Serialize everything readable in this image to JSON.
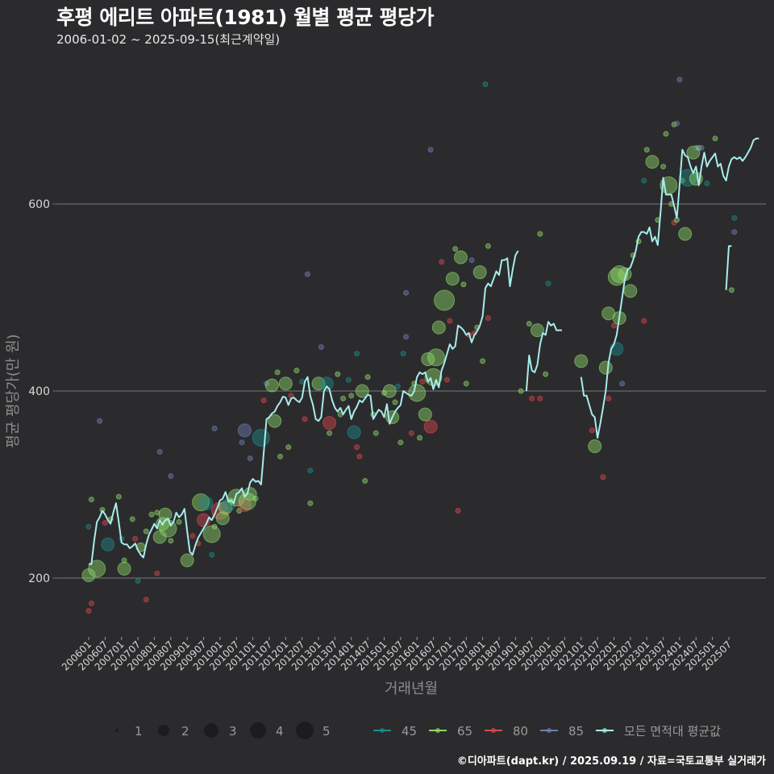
{
  "header": {
    "title": "후평 에리트 아파트(1981) 월별 평균 평당가",
    "subtitle": "2006-01-02 ~ 2025-09-15(최근계약일)"
  },
  "footer": {
    "credit": "©디아파트(dapt.kr) / 2025.09.19 / 자료=국토교통부 실거래가"
  },
  "colors": {
    "background": "#2b2b2d",
    "grid": "#6a6a6a",
    "avg_line": "#a8ecec",
    "s45": "#1f8a8a",
    "s65": "#8fd66b",
    "s80": "#d9484f",
    "s85": "#6f7fb8"
  },
  "chart_data": {
    "type": "line+scatter",
    "title": "후평 에리트 아파트(1981) 월별 평균 평당가",
    "subtitle": "2006-01-02 ~ 2025-09-15(최근계약일)",
    "xlabel": "거래년월",
    "ylabel": "평균 평당가(만 원)",
    "ylim": [
      130,
      745
    ],
    "yticks": [
      200,
      400,
      600
    ],
    "grid": true,
    "x_start": "200601",
    "x_ticks": [
      "200601",
      "200607",
      "200701",
      "200707",
      "200801",
      "200807",
      "200901",
      "200907",
      "201001",
      "201007",
      "201101",
      "201107",
      "201201",
      "201207",
      "201301",
      "201307",
      "201401",
      "201407",
      "201501",
      "201507",
      "201601",
      "201607",
      "201701",
      "201707",
      "201801",
      "201807",
      "201901",
      "201907",
      "202001",
      "202007",
      "202101",
      "202107",
      "202201",
      "202207",
      "202301",
      "202307",
      "202401",
      "202407",
      "202501",
      "202507"
    ],
    "size_legend": {
      "title": "",
      "values": [
        1,
        2,
        3,
        4,
        5
      ]
    },
    "color_legend": [
      {
        "name": "45",
        "key": "s45"
      },
      {
        "name": "65",
        "key": "s65"
      },
      {
        "name": "80",
        "key": "s80"
      },
      {
        "name": "85",
        "key": "s85"
      },
      {
        "name": "모든 면적대 평균값",
        "key": "avg_line"
      }
    ],
    "avg_line_segments": [
      {
        "start_index": 0,
        "values": [
          215,
          215,
          240,
          260,
          265,
          272,
          268,
          262,
          258,
          270,
          280,
          260,
          238,
          236,
          236,
          232,
          234,
          237,
          230,
          225,
          222,
          236,
          246,
          252,
          258,
          253,
          262,
          257,
          262,
          264,
          256,
          260,
          270,
          265,
          268,
          274,
          250,
          228,
          225,
          235,
          243,
          248,
          253,
          258,
          265,
          262,
          268,
          275,
          283,
          285,
          292,
          282,
          283,
          280,
          290,
          292,
          296,
          287,
          290,
          302,
          306,
          303,
          304,
          300,
          335,
          370,
          372,
          376,
          378,
          384,
          388,
          394,
          393,
          385,
          392,
          393,
          390,
          388,
          393,
          410,
          415,
          395,
          385,
          370,
          368,
          372,
          400,
          405,
          402,
          390,
          382,
          378,
          382,
          375,
          380,
          384,
          370,
          378,
          383,
          390,
          388,
          392,
          396,
          395,
          370,
          375,
          380,
          378,
          372,
          386,
          365,
          372,
          378,
          382,
          385,
          400,
          398,
          396,
          395,
          400,
          415,
          420,
          418,
          420,
          410,
          414,
          402,
          412,
          404,
          422,
          430,
          440,
          450,
          445,
          448,
          470,
          468,
          465,
          460,
          462,
          452,
          460,
          464,
          470,
          480,
          510,
          515,
          512,
          520,
          528,
          524,
          540,
          540,
          542,
          512,
          530,
          545,
          550
        ]
      },
      {
        "start_index": 160,
        "values": [
          400,
          438,
          422,
          420,
          428,
          450,
          462,
          460,
          474,
          470,
          472,
          465,
          465,
          465
        ]
      },
      {
        "start_index": 180,
        "values": [
          415,
          395,
          395,
          385,
          375,
          372,
          350,
          365,
          382,
          400,
          430,
          445,
          450,
          460,
          480,
          500,
          520,
          530,
          532,
          540,
          550,
          565,
          570,
          570,
          568,
          575,
          560,
          565,
          556,
          590,
          628,
          610,
          610,
          610,
          598,
          585,
          620,
          658,
          652,
          650,
          640,
          633,
          640,
          620,
          640,
          655,
          640,
          646,
          650,
          654,
          640,
          643,
          630,
          625,
          640,
          648,
          650,
          648,
          650,
          646,
          650,
          655,
          660,
          668,
          670,
          670
        ]
      },
      {
        "start_index": 233,
        "values": [
          508,
          555,
          555
        ]
      }
    ],
    "scatter_points": [
      [
        0,
        203,
        3,
        "s65"
      ],
      [
        0,
        255,
        1,
        "s45"
      ],
      [
        1,
        284,
        1,
        "s65"
      ],
      [
        0,
        165,
        1,
        "s80"
      ],
      [
        1,
        173,
        1,
        "s80"
      ],
      [
        3,
        210,
        4,
        "s65"
      ],
      [
        4,
        368,
        1,
        "s85"
      ],
      [
        5,
        273,
        1,
        "s65"
      ],
      [
        6,
        259,
        1,
        "s80"
      ],
      [
        8,
        263,
        1,
        "s65"
      ],
      [
        7,
        236,
        3,
        "s45"
      ],
      [
        11,
        287,
        1,
        "s65"
      ],
      [
        12,
        242,
        1,
        "s45"
      ],
      [
        13,
        219,
        1,
        "s65"
      ],
      [
        13,
        210,
        3,
        "s65"
      ],
      [
        16,
        263,
        1,
        "s65"
      ],
      [
        17,
        242,
        1,
        "s80"
      ],
      [
        18,
        197,
        1,
        "s45"
      ],
      [
        19,
        233,
        2,
        "s65"
      ],
      [
        21,
        177,
        1,
        "s80"
      ],
      [
        21,
        250,
        1,
        "s65"
      ],
      [
        23,
        268,
        1,
        "s65"
      ],
      [
        25,
        205,
        1,
        "s80"
      ],
      [
        25,
        270,
        1,
        "s65"
      ],
      [
        26,
        244,
        3,
        "s65"
      ],
      [
        27,
        258,
        3,
        "s65"
      ],
      [
        28,
        268,
        3,
        "s65"
      ],
      [
        29,
        253,
        4,
        "s65"
      ],
      [
        30,
        240,
        1,
        "s65"
      ],
      [
        26,
        335,
        1,
        "s85"
      ],
      [
        30,
        309,
        1,
        "s85"
      ],
      [
        33,
        260,
        1,
        "s65"
      ],
      [
        36,
        219,
        3,
        "s65"
      ],
      [
        38,
        245,
        1,
        "s80"
      ],
      [
        40,
        237,
        1,
        "s80"
      ],
      [
        41,
        281,
        4,
        "s65"
      ],
      [
        42,
        262,
        3,
        "s80"
      ],
      [
        43,
        280,
        3,
        "s45"
      ],
      [
        45,
        247,
        4,
        "s65"
      ],
      [
        46,
        255,
        1,
        "s65"
      ],
      [
        45,
        225,
        1,
        "s45"
      ],
      [
        46,
        360,
        1,
        "s85"
      ],
      [
        48,
        272,
        4,
        "s80"
      ],
      [
        49,
        264,
        3,
        "s65"
      ],
      [
        50,
        275,
        3,
        "s65"
      ],
      [
        51,
        278,
        3,
        "s45"
      ],
      [
        52,
        283,
        1,
        "s65"
      ],
      [
        54,
        286,
        4,
        "s65"
      ],
      [
        55,
        272,
        1,
        "s65"
      ],
      [
        57,
        358,
        3,
        "s85"
      ],
      [
        57,
        278,
        3,
        "s80"
      ],
      [
        58,
        282,
        4,
        "s65"
      ],
      [
        59,
        290,
        3,
        "s65"
      ],
      [
        59,
        328,
        1,
        "s85"
      ],
      [
        56,
        345,
        1,
        "s85"
      ],
      [
        61,
        285,
        1,
        "s65"
      ],
      [
        63,
        350,
        4,
        "s45"
      ],
      [
        64,
        390,
        1,
        "s80"
      ],
      [
        65,
        408,
        1,
        "s85"
      ],
      [
        67,
        406,
        3,
        "s65"
      ],
      [
        68,
        368,
        3,
        "s65"
      ],
      [
        69,
        420,
        1,
        "s65"
      ],
      [
        70,
        330,
        1,
        "s65"
      ],
      [
        72,
        408,
        3,
        "s65"
      ],
      [
        73,
        340,
        1,
        "s65"
      ],
      [
        74,
        395,
        1,
        "s80"
      ],
      [
        76,
        422,
        1,
        "s65"
      ],
      [
        78,
        410,
        1,
        "s45"
      ],
      [
        79,
        370,
        1,
        "s80"
      ],
      [
        80,
        525,
        1,
        "s85"
      ],
      [
        81,
        280,
        1,
        "s65"
      ],
      [
        81,
        315,
        1,
        "s45"
      ],
      [
        84,
        408,
        3,
        "s65"
      ],
      [
        85,
        447,
        1,
        "s85"
      ],
      [
        87,
        408,
        3,
        "s45"
      ],
      [
        88,
        366,
        3,
        "s80"
      ],
      [
        88,
        355,
        1,
        "s65"
      ],
      [
        91,
        418,
        1,
        "s65"
      ],
      [
        92,
        375,
        1,
        "s65"
      ],
      [
        93,
        392,
        1,
        "s65"
      ],
      [
        95,
        412,
        1,
        "s45"
      ],
      [
        96,
        395,
        1,
        "s65"
      ],
      [
        97,
        356,
        3,
        "s45"
      ],
      [
        98,
        340,
        1,
        "s80"
      ],
      [
        99,
        330,
        1,
        "s80"
      ],
      [
        100,
        400,
        3,
        "s65"
      ],
      [
        101,
        304,
        1,
        "s65"
      ],
      [
        98,
        440,
        1,
        "s45"
      ],
      [
        102,
        415,
        1,
        "s65"
      ],
      [
        104,
        375,
        1,
        "s65"
      ],
      [
        105,
        355,
        1,
        "s65"
      ],
      [
        108,
        398,
        1,
        "s65"
      ],
      [
        110,
        400,
        3,
        "s65"
      ],
      [
        111,
        372,
        3,
        "s65"
      ],
      [
        112,
        388,
        1,
        "s65"
      ],
      [
        113,
        405,
        1,
        "s45"
      ],
      [
        114,
        345,
        1,
        "s65"
      ],
      [
        115,
        440,
        1,
        "s45"
      ],
      [
        116,
        505,
        1,
        "s85"
      ],
      [
        116,
        458,
        1,
        "s85"
      ],
      [
        118,
        355,
        1,
        "s80"
      ],
      [
        119,
        408,
        1,
        "s65"
      ],
      [
        120,
        398,
        4,
        "s65"
      ],
      [
        121,
        350,
        1,
        "s65"
      ],
      [
        122,
        410,
        1,
        "s80"
      ],
      [
        123,
        375,
        3,
        "s65"
      ],
      [
        124,
        434,
        3,
        "s65"
      ],
      [
        125,
        362,
        3,
        "s80"
      ],
      [
        126,
        415,
        4,
        "s65"
      ],
      [
        127,
        436,
        4,
        "s65"
      ],
      [
        128,
        468,
        3,
        "s65"
      ],
      [
        129,
        538,
        1,
        "s80"
      ],
      [
        130,
        497,
        5,
        "s65"
      ],
      [
        131,
        412,
        1,
        "s80"
      ],
      [
        132,
        475,
        1,
        "s80"
      ],
      [
        133,
        520,
        3,
        "s65"
      ],
      [
        134,
        552,
        1,
        "s65"
      ],
      [
        135,
        272,
        1,
        "s80"
      ],
      [
        136,
        543,
        3,
        "s65"
      ],
      [
        137,
        514,
        1,
        "s65"
      ],
      [
        138,
        408,
        1,
        "s65"
      ],
      [
        139,
        460,
        1,
        "s80"
      ],
      [
        140,
        540,
        1,
        "s85"
      ],
      [
        141,
        462,
        1,
        "s80"
      ],
      [
        142,
        468,
        1,
        "s65"
      ],
      [
        143,
        527,
        3,
        "s65"
      ],
      [
        144,
        432,
        1,
        "s65"
      ],
      [
        146,
        478,
        1,
        "s80"
      ],
      [
        146,
        555,
        1,
        "s65"
      ],
      [
        145,
        728,
        1,
        "s45"
      ],
      [
        125,
        658,
        1,
        "s85"
      ],
      [
        158,
        400,
        1,
        "s65"
      ],
      [
        161,
        472,
        1,
        "s65"
      ],
      [
        162,
        392,
        1,
        "s80"
      ],
      [
        164,
        465,
        3,
        "s65"
      ],
      [
        165,
        392,
        1,
        "s80"
      ],
      [
        165,
        568,
        1,
        "s65"
      ],
      [
        167,
        418,
        1,
        "s65"
      ],
      [
        168,
        515,
        1,
        "s45"
      ],
      [
        180,
        432,
        3,
        "s65"
      ],
      [
        184,
        358,
        1,
        "s80"
      ],
      [
        185,
        341,
        3,
        "s65"
      ],
      [
        188,
        308,
        1,
        "s80"
      ],
      [
        189,
        425,
        3,
        "s65"
      ],
      [
        190,
        483,
        3,
        "s65"
      ],
      [
        190,
        392,
        1,
        "s80"
      ],
      [
        192,
        470,
        1,
        "s80"
      ],
      [
        193,
        445,
        3,
        "s45"
      ],
      [
        193,
        522,
        4,
        "s65"
      ],
      [
        194,
        478,
        3,
        "s65"
      ],
      [
        194,
        525,
        4,
        "s65"
      ],
      [
        195,
        408,
        1,
        "s85"
      ],
      [
        196,
        525,
        3,
        "s65"
      ],
      [
        198,
        507,
        3,
        "s65"
      ],
      [
        199,
        545,
        1,
        "s65"
      ],
      [
        201,
        560,
        1,
        "s65"
      ],
      [
        203,
        475,
        1,
        "s80"
      ],
      [
        203,
        625,
        1,
        "s45"
      ],
      [
        204,
        658,
        1,
        "s65"
      ],
      [
        206,
        645,
        3,
        "s65"
      ],
      [
        208,
        583,
        1,
        "s65"
      ],
      [
        210,
        640,
        1,
        "s65"
      ],
      [
        211,
        675,
        1,
        "s65"
      ],
      [
        212,
        620,
        4,
        "s65"
      ],
      [
        214,
        685,
        1,
        "s65"
      ],
      [
        215,
        686,
        1,
        "s85"
      ],
      [
        213,
        600,
        1,
        "s65"
      ],
      [
        214,
        580,
        1,
        "s80"
      ],
      [
        215,
        583,
        1,
        "s65"
      ],
      [
        216,
        733,
        1,
        "s85"
      ],
      [
        217,
        625,
        1,
        "s65"
      ],
      [
        218,
        568,
        3,
        "s65"
      ],
      [
        219,
        628,
        4,
        "s45"
      ],
      [
        221,
        655,
        3,
        "s65"
      ],
      [
        222,
        660,
        1,
        "s85"
      ],
      [
        222,
        627,
        3,
        "s65"
      ],
      [
        223,
        660,
        1,
        "s65"
      ],
      [
        224,
        660,
        1,
        "s85"
      ],
      [
        226,
        622,
        1,
        "s45"
      ],
      [
        229,
        670,
        1,
        "s65"
      ],
      [
        235,
        508,
        1,
        "s65"
      ],
      [
        236,
        585,
        1,
        "s45"
      ],
      [
        236,
        570,
        1,
        "s85"
      ]
    ]
  }
}
